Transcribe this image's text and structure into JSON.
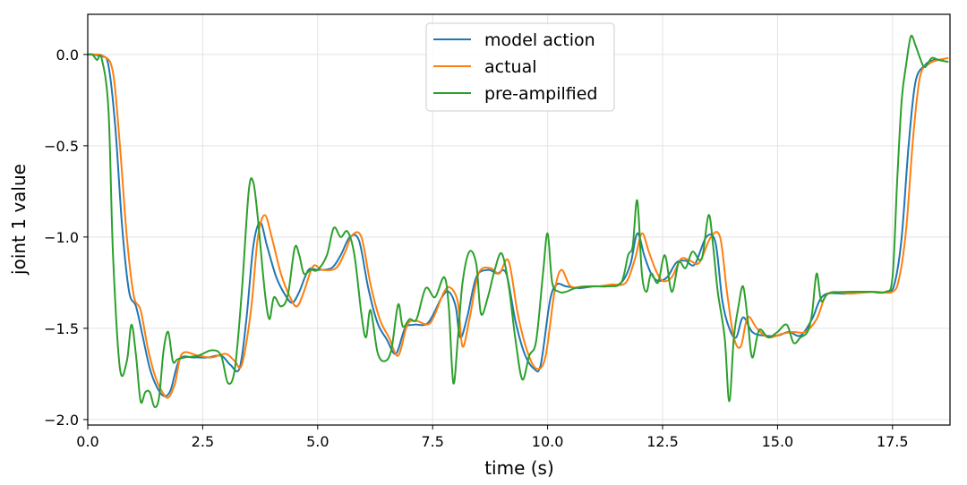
{
  "chart_data": {
    "type": "line",
    "xlabel": "time (s)",
    "ylabel": "joint 1 value",
    "xlim": [
      0,
      18.75
    ],
    "ylim": [
      -2.03,
      0.22
    ],
    "xticks": [
      0.0,
      2.5,
      5.0,
      7.5,
      10.0,
      12.5,
      15.0,
      17.5
    ],
    "xtick_labels": [
      "0.0",
      "2.5",
      "5.0",
      "7.5",
      "10.0",
      "12.5",
      "15.0",
      "17.5"
    ],
    "yticks": [
      0.0,
      -0.5,
      -1.0,
      -1.5,
      -2.0
    ],
    "ytick_labels": [
      "0.0",
      "−0.5",
      "−1.0",
      "−1.5",
      "−2.0"
    ],
    "grid": true,
    "legend_position": "top-center",
    "series": [
      {
        "name": "model action",
        "color": "#1f77b4",
        "x": [
          0.0,
          0.3,
          0.45,
          0.6,
          0.75,
          0.9,
          1.05,
          1.2,
          1.35,
          1.5,
          1.65,
          1.8,
          2.0,
          2.3,
          2.6,
          2.9,
          3.1,
          3.3,
          3.45,
          3.6,
          3.75,
          3.9,
          4.1,
          4.3,
          4.45,
          4.6,
          4.8,
          5.0,
          5.3,
          5.5,
          5.7,
          5.9,
          6.1,
          6.3,
          6.5,
          6.7,
          6.9,
          7.1,
          7.4,
          7.7,
          7.85,
          8.0,
          8.1,
          8.25,
          8.45,
          8.7,
          8.9,
          9.1,
          9.3,
          9.5,
          9.7,
          9.85,
          10.05,
          10.2,
          10.4,
          10.7,
          11.0,
          11.3,
          11.6,
          11.8,
          11.95,
          12.1,
          12.25,
          12.4,
          12.6,
          12.8,
          13.0,
          13.2,
          13.45,
          13.65,
          13.8,
          13.95,
          14.1,
          14.25,
          14.45,
          14.7,
          15.0,
          15.25,
          15.5,
          15.75,
          16.0,
          16.5,
          17.0,
          17.4,
          17.55,
          17.7,
          17.85,
          18.0,
          18.2,
          18.4,
          18.6
        ],
        "y": [
          0.0,
          -0.01,
          -0.06,
          -0.4,
          -0.95,
          -1.3,
          -1.38,
          -1.55,
          -1.72,
          -1.82,
          -1.87,
          -1.84,
          -1.67,
          -1.66,
          -1.66,
          -1.65,
          -1.7,
          -1.72,
          -1.45,
          -1.05,
          -0.92,
          -1.05,
          -1.22,
          -1.32,
          -1.36,
          -1.3,
          -1.18,
          -1.18,
          -1.17,
          -1.1,
          -1.0,
          -1.02,
          -1.28,
          -1.47,
          -1.56,
          -1.64,
          -1.5,
          -1.48,
          -1.47,
          -1.33,
          -1.3,
          -1.38,
          -1.55,
          -1.44,
          -1.22,
          -1.18,
          -1.2,
          -1.2,
          -1.46,
          -1.64,
          -1.72,
          -1.7,
          -1.35,
          -1.26,
          -1.27,
          -1.28,
          -1.27,
          -1.27,
          -1.25,
          -1.15,
          -0.98,
          -1.1,
          -1.2,
          -1.24,
          -1.22,
          -1.14,
          -1.13,
          -1.15,
          -1.0,
          -1.03,
          -1.35,
          -1.5,
          -1.55,
          -1.44,
          -1.52,
          -1.54,
          -1.54,
          -1.52,
          -1.54,
          -1.45,
          -1.32,
          -1.31,
          -1.3,
          -1.3,
          -1.25,
          -1.0,
          -0.5,
          -0.15,
          -0.06,
          -0.03,
          -0.03
        ]
      },
      {
        "name": "actual",
        "color": "#ff7f0e",
        "x": [
          0.0,
          0.35,
          0.55,
          0.7,
          0.85,
          1.0,
          1.15,
          1.3,
          1.45,
          1.6,
          1.75,
          1.9,
          2.05,
          2.4,
          2.7,
          3.0,
          3.2,
          3.35,
          3.55,
          3.7,
          3.85,
          4.0,
          4.2,
          4.4,
          4.55,
          4.7,
          4.9,
          5.1,
          5.4,
          5.6,
          5.75,
          5.95,
          6.15,
          6.35,
          6.55,
          6.75,
          6.95,
          7.15,
          7.45,
          7.75,
          7.9,
          8.05,
          8.15,
          8.3,
          8.5,
          8.75,
          8.95,
          9.15,
          9.35,
          9.55,
          9.75,
          9.95,
          10.15,
          10.3,
          10.5,
          10.8,
          11.1,
          11.4,
          11.7,
          11.9,
          12.05,
          12.2,
          12.35,
          12.5,
          12.7,
          12.9,
          13.1,
          13.3,
          13.55,
          13.75,
          13.9,
          14.05,
          14.2,
          14.35,
          14.55,
          14.8,
          15.1,
          15.35,
          15.6,
          15.85,
          16.1,
          16.6,
          17.1,
          17.5,
          17.65,
          17.8,
          17.95,
          18.1,
          18.3,
          18.5,
          18.7
        ],
        "y": [
          0.0,
          -0.01,
          -0.1,
          -0.5,
          -1.0,
          -1.32,
          -1.4,
          -1.6,
          -1.75,
          -1.84,
          -1.88,
          -1.8,
          -1.64,
          -1.65,
          -1.66,
          -1.64,
          -1.68,
          -1.7,
          -1.4,
          -1.0,
          -0.88,
          -1.0,
          -1.2,
          -1.33,
          -1.38,
          -1.3,
          -1.16,
          -1.18,
          -1.17,
          -1.08,
          -0.99,
          -1.0,
          -1.26,
          -1.45,
          -1.55,
          -1.65,
          -1.48,
          -1.46,
          -1.47,
          -1.3,
          -1.28,
          -1.36,
          -1.6,
          -1.45,
          -1.2,
          -1.17,
          -1.2,
          -1.13,
          -1.42,
          -1.62,
          -1.72,
          -1.66,
          -1.3,
          -1.18,
          -1.27,
          -1.27,
          -1.27,
          -1.26,
          -1.25,
          -1.12,
          -0.98,
          -1.08,
          -1.18,
          -1.24,
          -1.22,
          -1.12,
          -1.13,
          -1.14,
          -1.0,
          -1.0,
          -1.3,
          -1.55,
          -1.6,
          -1.44,
          -1.5,
          -1.55,
          -1.53,
          -1.52,
          -1.52,
          -1.45,
          -1.31,
          -1.31,
          -1.3,
          -1.3,
          -1.22,
          -0.95,
          -0.45,
          -0.12,
          -0.05,
          -0.03,
          -0.02
        ]
      },
      {
        "name": "pre-ampilfied",
        "color": "#2ca02c",
        "x": [
          0.0,
          0.1,
          0.2,
          0.3,
          0.45,
          0.55,
          0.7,
          0.85,
          0.95,
          1.05,
          1.15,
          1.25,
          1.35,
          1.45,
          1.55,
          1.65,
          1.75,
          1.85,
          1.95,
          2.1,
          2.4,
          2.7,
          2.9,
          3.05,
          3.2,
          3.35,
          3.5,
          3.6,
          3.7,
          3.85,
          3.95,
          4.05,
          4.2,
          4.35,
          4.5,
          4.6,
          4.7,
          4.85,
          5.0,
          5.2,
          5.35,
          5.5,
          5.65,
          5.8,
          5.95,
          6.05,
          6.15,
          6.3,
          6.45,
          6.6,
          6.75,
          6.85,
          7.0,
          7.15,
          7.35,
          7.55,
          7.75,
          7.85,
          7.95,
          8.05,
          8.15,
          8.3,
          8.45,
          8.55,
          8.7,
          8.85,
          9.0,
          9.15,
          9.3,
          9.45,
          9.6,
          9.75,
          9.9,
          10.0,
          10.1,
          10.25,
          10.4,
          10.6,
          10.9,
          11.3,
          11.6,
          11.75,
          11.85,
          11.95,
          12.05,
          12.15,
          12.25,
          12.4,
          12.55,
          12.7,
          12.85,
          13.0,
          13.15,
          13.35,
          13.5,
          13.6,
          13.7,
          13.85,
          13.95,
          14.05,
          14.15,
          14.25,
          14.35,
          14.45,
          14.6,
          14.8,
          15.0,
          15.2,
          15.35,
          15.5,
          15.65,
          15.75,
          15.85,
          15.95,
          16.1,
          16.5,
          17.0,
          17.35,
          17.5,
          17.6,
          17.7,
          17.8,
          17.9,
          18.0,
          18.1,
          18.2,
          18.35,
          18.5,
          18.7
        ],
        "y": [
          0.0,
          0.0,
          -0.03,
          -0.02,
          -0.3,
          -1.1,
          -1.72,
          -1.68,
          -1.48,
          -1.65,
          -1.9,
          -1.85,
          -1.85,
          -1.93,
          -1.88,
          -1.62,
          -1.52,
          -1.68,
          -1.67,
          -1.66,
          -1.65,
          -1.62,
          -1.65,
          -1.8,
          -1.72,
          -1.3,
          -0.75,
          -0.7,
          -0.9,
          -1.3,
          -1.45,
          -1.33,
          -1.38,
          -1.32,
          -1.06,
          -1.1,
          -1.2,
          -1.18,
          -1.18,
          -1.1,
          -0.95,
          -1.0,
          -0.97,
          -1.1,
          -1.42,
          -1.55,
          -1.4,
          -1.63,
          -1.68,
          -1.62,
          -1.37,
          -1.49,
          -1.45,
          -1.45,
          -1.28,
          -1.33,
          -1.22,
          -1.38,
          -1.8,
          -1.55,
          -1.25,
          -1.08,
          -1.15,
          -1.42,
          -1.33,
          -1.18,
          -1.09,
          -1.26,
          -1.56,
          -1.78,
          -1.65,
          -1.57,
          -1.2,
          -0.98,
          -1.25,
          -1.3,
          -1.3,
          -1.28,
          -1.27,
          -1.27,
          -1.25,
          -1.1,
          -1.05,
          -0.8,
          -1.2,
          -1.3,
          -1.2,
          -1.25,
          -1.1,
          -1.3,
          -1.14,
          -1.17,
          -1.08,
          -1.12,
          -0.88,
          -1.05,
          -1.3,
          -1.55,
          -1.9,
          -1.55,
          -1.38,
          -1.27,
          -1.45,
          -1.66,
          -1.51,
          -1.55,
          -1.52,
          -1.48,
          -1.58,
          -1.55,
          -1.52,
          -1.42,
          -1.2,
          -1.35,
          -1.31,
          -1.3,
          -1.3,
          -1.3,
          -1.22,
          -0.7,
          -0.25,
          -0.05,
          0.1,
          0.05,
          -0.02,
          -0.07,
          -0.02,
          -0.03,
          -0.04
        ]
      }
    ]
  }
}
